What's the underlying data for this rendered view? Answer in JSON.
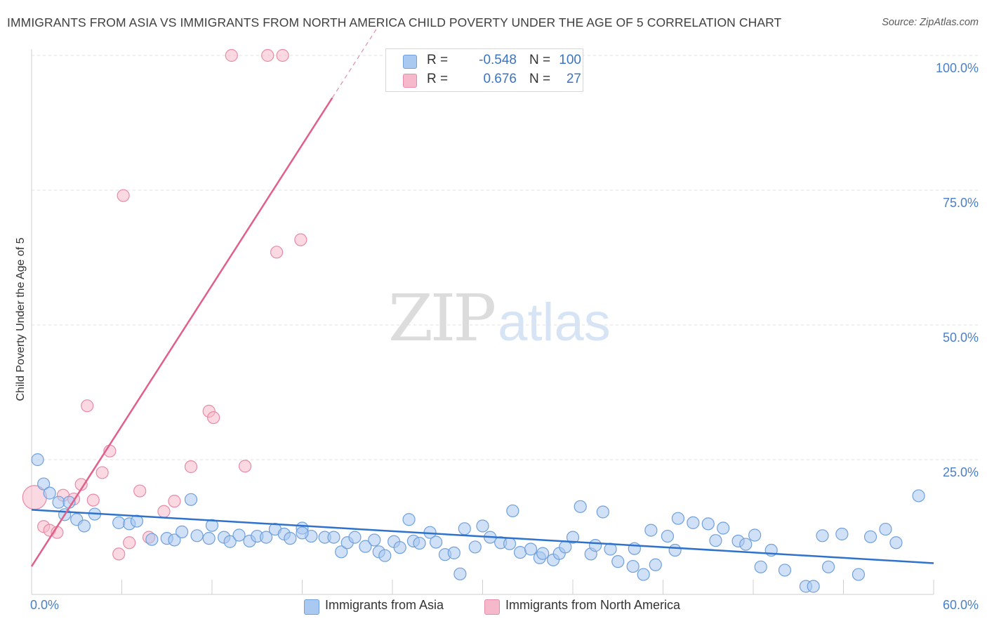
{
  "header": {
    "title": "IMMIGRANTS FROM ASIA VS IMMIGRANTS FROM NORTH AMERICA CHILD POVERTY UNDER THE AGE OF 5 CORRELATION CHART",
    "source": "Source: ZipAtlas.com"
  },
  "watermark": {
    "zip": "ZIP",
    "atlas": "atlas"
  },
  "legend": {
    "rows": [
      {
        "r_label": "R =",
        "r_value": "-0.548",
        "n_label": "N =",
        "n_value": "100",
        "color": "#a9c9f0"
      },
      {
        "r_label": "R =",
        "r_value": "0.676",
        "n_label": "N =",
        "n_value": "27",
        "color": "#f6b9cb"
      }
    ]
  },
  "bottom_legend": {
    "asia": "Immigrants from Asia",
    "north_america": "Immigrants from North America"
  },
  "colors": {
    "asia_fill": "#a9c9f0",
    "asia_stroke": "#6fa0dc",
    "asia_line": "#2f72cc",
    "na_fill": "#f6b9cb",
    "na_stroke": "#e88aa8",
    "na_line": "#e0608a",
    "tick_label": "#4a80c8",
    "grid": "#e0e0e0"
  },
  "chart_data": {
    "type": "scatter",
    "xlabel": "",
    "ylabel": "Child Poverty Under the Age of 5",
    "xlim": [
      0,
      60
    ],
    "ylim": [
      0,
      100
    ],
    "x_tick_labels": [
      {
        "value": 0,
        "label": "0.0%"
      },
      {
        "value": 60,
        "label": "60.0%"
      }
    ],
    "y_tick_labels": [
      {
        "value": 25,
        "label": "25.0%"
      },
      {
        "value": 50,
        "label": "50.0%"
      },
      {
        "value": 75,
        "label": "75.0%"
      },
      {
        "value": 100,
        "label": "100.0%"
      }
    ],
    "series": [
      {
        "name": "Immigrants from Asia",
        "trend": {
          "x0": 0,
          "y0": 15.7,
          "x1": 60,
          "y1": 5.8
        },
        "points": [
          [
            0.4,
            25
          ],
          [
            0.8,
            20.5
          ],
          [
            1.2,
            18.8
          ],
          [
            1.8,
            17.1
          ],
          [
            2.5,
            17.1
          ],
          [
            2.2,
            14.8
          ],
          [
            3,
            13.9
          ],
          [
            3.5,
            12.7
          ],
          [
            4.2,
            14.9
          ],
          [
            5.8,
            13.3
          ],
          [
            6.5,
            13.1
          ],
          [
            7,
            13.6
          ],
          [
            8,
            10.2
          ],
          [
            9,
            10.4
          ],
          [
            9.5,
            10.1
          ],
          [
            10,
            11.6
          ],
          [
            11,
            10.9
          ],
          [
            11.8,
            10.4
          ],
          [
            10.6,
            17.6
          ],
          [
            12,
            12.8
          ],
          [
            12.8,
            10.6
          ],
          [
            13.2,
            9.8
          ],
          [
            13.8,
            11
          ],
          [
            14.5,
            9.9
          ],
          [
            15,
            10.8
          ],
          [
            15.6,
            10.6
          ],
          [
            16.2,
            12.1
          ],
          [
            16.8,
            11.2
          ],
          [
            17.2,
            10.4
          ],
          [
            18,
            12.3
          ],
          [
            18.6,
            10.8
          ],
          [
            18,
            11.4
          ],
          [
            19.5,
            10.6
          ],
          [
            20.1,
            10.6
          ],
          [
            20.6,
            7.9
          ],
          [
            21,
            9.6
          ],
          [
            21.5,
            10.6
          ],
          [
            22.2,
            8.9
          ],
          [
            22.8,
            10.1
          ],
          [
            23.1,
            7.9
          ],
          [
            23.5,
            7.2
          ],
          [
            24.1,
            9.8
          ],
          [
            24.5,
            8.7
          ],
          [
            25.1,
            13.9
          ],
          [
            25.4,
            9.9
          ],
          [
            25.8,
            9.5
          ],
          [
            26.5,
            11.5
          ],
          [
            26.9,
            9.7
          ],
          [
            27.5,
            7.4
          ],
          [
            28.1,
            7.7
          ],
          [
            28.5,
            3.8
          ],
          [
            28.8,
            12.2
          ],
          [
            29.5,
            8.8
          ],
          [
            30,
            12.7
          ],
          [
            30.5,
            10.6
          ],
          [
            31.2,
            9.6
          ],
          [
            31.8,
            9.4
          ],
          [
            32.5,
            7.8
          ],
          [
            32,
            15.5
          ],
          [
            33.2,
            8.4
          ],
          [
            33.8,
            6.8
          ],
          [
            34,
            7.6
          ],
          [
            34.7,
            6.4
          ],
          [
            35.1,
            7.6
          ],
          [
            35.5,
            8.8
          ],
          [
            36,
            10.6
          ],
          [
            36.5,
            16.3
          ],
          [
            37.2,
            7.5
          ],
          [
            37.5,
            9.1
          ],
          [
            38,
            15.3
          ],
          [
            38.5,
            8.4
          ],
          [
            39,
            6.1
          ],
          [
            40,
            5.2
          ],
          [
            40.7,
            3.7
          ],
          [
            41.2,
            11.9
          ],
          [
            41.5,
            5.5
          ],
          [
            42.3,
            10.8
          ],
          [
            42.8,
            8.2
          ],
          [
            43,
            14.1
          ],
          [
            44,
            13.3
          ],
          [
            45,
            13.1
          ],
          [
            45.5,
            10
          ],
          [
            46,
            12.3
          ],
          [
            47,
            9.9
          ],
          [
            47.5,
            9.3
          ],
          [
            48.1,
            11
          ],
          [
            48.5,
            5.1
          ],
          [
            49.2,
            8.2
          ],
          [
            50.1,
            4.5
          ],
          [
            51.5,
            1.5
          ],
          [
            52,
            1.5
          ],
          [
            53,
            5.1
          ],
          [
            55,
            3.7
          ],
          [
            56.8,
            12.1
          ],
          [
            59,
            18.3
          ],
          [
            57.5,
            9.6
          ],
          [
            55.8,
            10.7
          ],
          [
            52.6,
            10.9
          ],
          [
            53.9,
            11.2
          ],
          [
            40.1,
            8.5
          ]
        ]
      },
      {
        "name": "Immigrants from North America",
        "trend": {
          "x0": 0,
          "y0": 5.2,
          "x1": 60,
          "y1": 266,
          "solid_until_x": 20
        },
        "points": [
          [
            0.2,
            18
          ],
          [
            0.8,
            12.6
          ],
          [
            1.2,
            11.9
          ],
          [
            1.7,
            11.5
          ],
          [
            2.1,
            18.4
          ],
          [
            2.8,
            17.7
          ],
          [
            3.3,
            20.4
          ],
          [
            3.7,
            35
          ],
          [
            4.1,
            17.5
          ],
          [
            4.7,
            22.6
          ],
          [
            5.2,
            26.6
          ],
          [
            5.8,
            7.5
          ],
          [
            6.5,
            9.6
          ],
          [
            6.1,
            74
          ],
          [
            7.2,
            19.2
          ],
          [
            7.8,
            10.6
          ],
          [
            8.8,
            15.4
          ],
          [
            9.5,
            17.3
          ],
          [
            10.6,
            23.7
          ],
          [
            11.8,
            34
          ],
          [
            12.1,
            32.8
          ],
          [
            13.3,
            100
          ],
          [
            14.2,
            23.8
          ],
          [
            15.7,
            100
          ],
          [
            16.7,
            100
          ],
          [
            16.3,
            63.5
          ],
          [
            17.9,
            65.8
          ]
        ]
      }
    ]
  }
}
